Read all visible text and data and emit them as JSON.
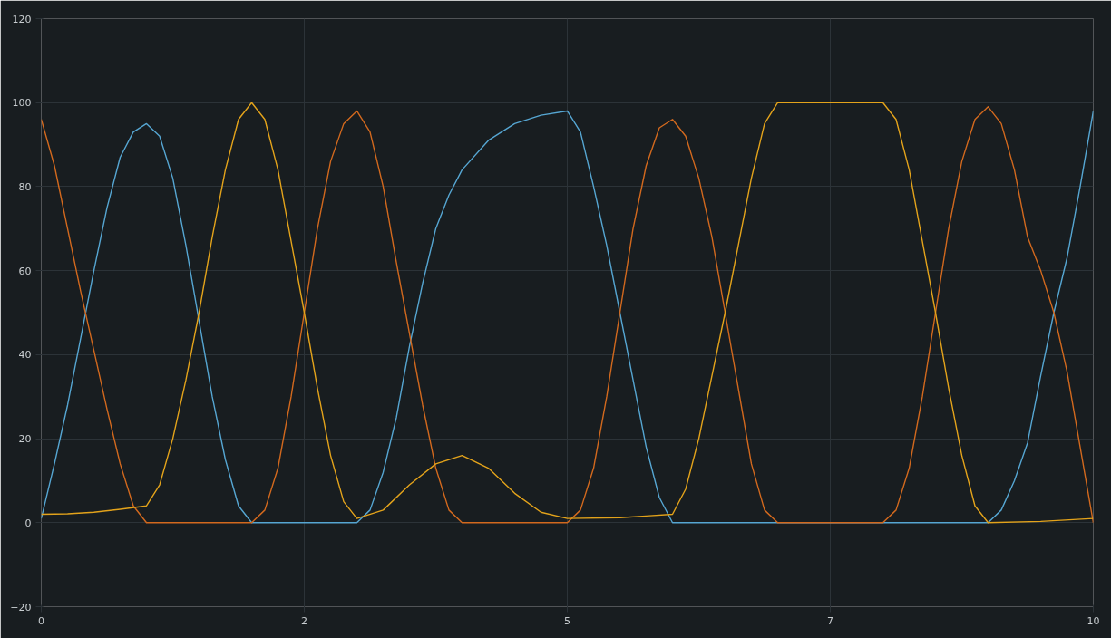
{
  "chart_data": {
    "type": "line",
    "xlim": [
      0,
      10
    ],
    "ylim": [
      -20,
      120
    ],
    "xticks": [
      0,
      {
        "value": 2.5,
        "label": "2"
      },
      5,
      {
        "value": 7.5,
        "label": "7"
      },
      10
    ],
    "yticks": [
      -20,
      0,
      20,
      40,
      60,
      80,
      100,
      120
    ],
    "grid": true,
    "marker": "none",
    "line_style": "solid",
    "series": [
      {
        "color": "#56a6d2",
        "x": [
          0,
          0.125,
          0.25,
          0.375,
          0.5,
          0.625,
          0.75,
          0.875,
          1,
          1.125,
          1.25,
          1.375,
          1.5,
          1.625,
          1.75,
          1.875,
          2,
          3,
          3.125,
          3.25,
          3.375,
          3.5,
          3.625,
          3.75,
          3.875,
          4,
          4.25,
          4.5,
          4.75,
          5,
          5.125,
          5.25,
          5.375,
          5.5,
          5.625,
          5.75,
          5.875,
          6,
          9,
          9.125,
          9.25,
          9.375,
          9.5,
          9.625,
          9.75,
          9.875,
          10
        ],
        "values": [
          1,
          14,
          28,
          44,
          60,
          75,
          87,
          93,
          95,
          92,
          82,
          66,
          48,
          30,
          15,
          4,
          0,
          0,
          3,
          12,
          25,
          42,
          57,
          70,
          78,
          84,
          91,
          95,
          97,
          98,
          93,
          80,
          66,
          50,
          34,
          18,
          6,
          0,
          0,
          3,
          10,
          19,
          35,
          50,
          63,
          80,
          98
        ]
      },
      {
        "color": "#d2691e",
        "x": [
          0,
          0.125,
          0.25,
          0.375,
          0.5,
          0.625,
          0.75,
          0.875,
          1,
          2,
          2.125,
          2.25,
          2.375,
          2.5,
          2.625,
          2.75,
          2.875,
          3,
          3.125,
          3.25,
          3.375,
          3.5,
          3.625,
          3.75,
          3.875,
          4,
          5,
          5.125,
          5.25,
          5.375,
          5.5,
          5.625,
          5.75,
          5.875,
          6,
          6.125,
          6.25,
          6.375,
          6.5,
          6.625,
          6.75,
          6.875,
          7,
          8,
          8.125,
          8.25,
          8.375,
          8.5,
          8.625,
          8.75,
          8.875,
          9,
          9.125,
          9.25,
          9.375,
          9.5,
          9.625,
          9.75,
          9.875,
          10
        ],
        "values": [
          96,
          85,
          70,
          55,
          41,
          27,
          14,
          4,
          0,
          0,
          3,
          13,
          30,
          50,
          70,
          86,
          95,
          98,
          93,
          80,
          62,
          45,
          28,
          13,
          3,
          0,
          0,
          3,
          13,
          30,
          50,
          70,
          85,
          94,
          96,
          92,
          82,
          68,
          50,
          32,
          14,
          3,
          0,
          0,
          3,
          13,
          30,
          50,
          70,
          86,
          96,
          99,
          95,
          84,
          68,
          60,
          50,
          36,
          18,
          0
        ]
      },
      {
        "color": "#e3a31b",
        "x": [
          0,
          0.25,
          0.5,
          0.75,
          1,
          1.125,
          1.25,
          1.375,
          1.5,
          1.625,
          1.75,
          1.875,
          2,
          2.125,
          2.25,
          2.375,
          2.5,
          2.625,
          2.75,
          2.875,
          3,
          3.25,
          3.5,
          3.75,
          4,
          4.25,
          4.5,
          4.75,
          5,
          5.5,
          5.75,
          6,
          6.125,
          6.25,
          6.375,
          6.5,
          6.625,
          6.75,
          6.875,
          7,
          8,
          8.125,
          8.25,
          8.375,
          8.5,
          8.625,
          8.75,
          8.875,
          9,
          9.5,
          10
        ],
        "values": [
          2,
          2.1,
          2.5,
          3.2,
          4,
          9,
          20,
          34,
          50,
          68,
          84,
          96,
          100,
          96,
          84,
          67,
          50,
          32,
          16,
          5,
          1,
          3,
          9,
          14,
          16,
          13,
          7,
          2.5,
          1,
          1.2,
          1.6,
          2,
          8,
          20,
          35,
          50,
          66,
          82,
          95,
          100,
          100,
          96,
          84,
          67,
          50,
          32,
          16,
          4,
          0,
          0.3,
          1
        ]
      }
    ]
  }
}
